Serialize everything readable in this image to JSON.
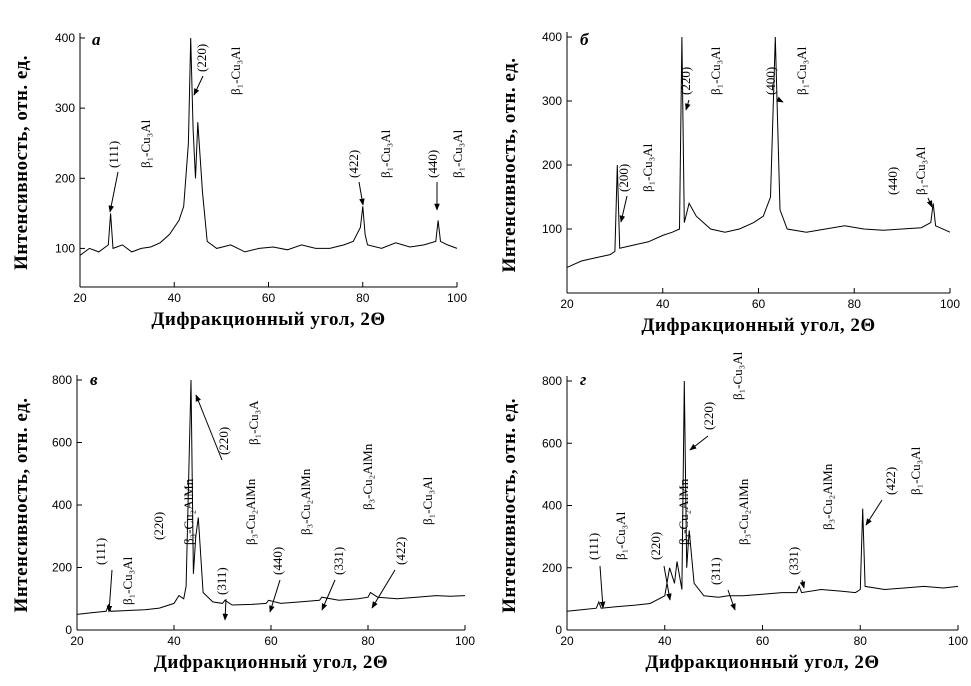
{
  "chart_data": [
    {
      "type": "line",
      "panel_label": "а",
      "xlabel": "Дифракционный угол, 2Θ",
      "ylabel": "Интенсивность, отн. ед.",
      "color": "#000000",
      "xlim": [
        20,
        100
      ],
      "ylim": [
        45,
        400
      ],
      "xticks": [
        20,
        40,
        60,
        80,
        100
      ],
      "yticks": [
        100,
        200,
        300,
        400
      ],
      "x": [
        20,
        22,
        24,
        26,
        26.5,
        27,
        29,
        31,
        33,
        35,
        37,
        39,
        41,
        42,
        43,
        43.5,
        44,
        44.5,
        45,
        46,
        47,
        49,
        52,
        55,
        58,
        61,
        64,
        67,
        70,
        73,
        76,
        78,
        79.5,
        80,
        80.5,
        81,
        84,
        87,
        90,
        93,
        95.5,
        96,
        96.5,
        98,
        100
      ],
      "values": [
        90,
        100,
        95,
        105,
        150,
        100,
        105,
        95,
        100,
        102,
        108,
        120,
        140,
        160,
        250,
        400,
        270,
        200,
        280,
        180,
        110,
        100,
        105,
        95,
        100,
        102,
        98,
        105,
        100,
        100,
        105,
        110,
        130,
        160,
        120,
        105,
        100,
        108,
        102,
        105,
        110,
        140,
        110,
        105,
        100
      ],
      "annotations": [
        {
          "hkl": "(111)",
          "phase": "β₁-Cu₃Al"
        },
        {
          "hkl": "(220)",
          "phase": "β₁-Cu₃Al"
        },
        {
          "hkl": "(422)",
          "phase": "β₁-Cu₃Al"
        },
        {
          "hkl": "(440)",
          "phase": "β₁-Cu₃Al"
        }
      ]
    },
    {
      "type": "line",
      "panel_label": "б",
      "xlabel": "Дифракционный угол, 2Θ",
      "ylabel": "Интенсивность, отн. ед.",
      "color": "#000000",
      "xlim": [
        20,
        100
      ],
      "ylim": [
        0,
        400
      ],
      "xticks": [
        20,
        40,
        60,
        80,
        100
      ],
      "yticks": [
        100,
        200,
        300,
        400
      ],
      "x": [
        20,
        23,
        26,
        29,
        30,
        30.5,
        31,
        34,
        37,
        40,
        42,
        43.5,
        44,
        44.5,
        45.5,
        47,
        50,
        53,
        56,
        59,
        61,
        62.5,
        63.5,
        64.5,
        66,
        70,
        74,
        78,
        82,
        86,
        90,
        94,
        96,
        96.5,
        97,
        100
      ],
      "values": [
        40,
        50,
        55,
        60,
        65,
        200,
        70,
        75,
        80,
        90,
        95,
        100,
        400,
        110,
        140,
        120,
        100,
        95,
        100,
        110,
        120,
        150,
        400,
        130,
        100,
        95,
        100,
        105,
        100,
        98,
        100,
        102,
        110,
        140,
        105,
        95
      ],
      "annotations": [
        {
          "hkl": "(200)",
          "phase": "β₁-Cu₃Al"
        },
        {
          "hkl": "(220)",
          "phase": "β₁-Cu₃Al"
        },
        {
          "hkl": "(400)",
          "phase": "β₁-Cu₃Al"
        },
        {
          "hkl": "(440)",
          "phase": "β₁-Cu₃Al"
        }
      ]
    },
    {
      "type": "line",
      "panel_label": "в",
      "xlabel": "Дифракционный угол, 2Θ",
      "ylabel": "Интенсивность, отн. ед.",
      "color": "#000000",
      "xlim": [
        20,
        100
      ],
      "ylim": [
        0,
        800
      ],
      "xticks": [
        20,
        40,
        60,
        80,
        100
      ],
      "yticks": [
        0,
        200,
        400,
        600,
        800
      ],
      "x": [
        20,
        23,
        26,
        26.5,
        27,
        30,
        34,
        37,
        40,
        41,
        42,
        42.5,
        43.5,
        44,
        44.5,
        45,
        46,
        48,
        50,
        50.5,
        52,
        56,
        59,
        59.5,
        62,
        66,
        70,
        70.5,
        74,
        78,
        80,
        80.5,
        82,
        86,
        90,
        94,
        97,
        100
      ],
      "values": [
        50,
        55,
        60,
        80,
        60,
        62,
        65,
        70,
        85,
        110,
        100,
        140,
        800,
        180,
        300,
        360,
        120,
        90,
        85,
        95,
        80,
        82,
        85,
        95,
        85,
        90,
        95,
        105,
        95,
        100,
        105,
        120,
        105,
        100,
        105,
        110,
        108,
        110
      ],
      "annotations": [
        {
          "hkl": "(111)",
          "phase": "β₁-Cu₃Al"
        },
        {
          "hkl": "(220)",
          "phase": "β₃-Cu₂AlMn"
        },
        {
          "hkl": "(220)",
          "phase": "β₁-Cu₃A"
        },
        {
          "hkl": "(311)",
          "phase": "β₃-Cu₂AlMn"
        },
        {
          "hkl": "(440)",
          "phase": "β₃-Cu₂AlMn"
        },
        {
          "hkl": "(331)",
          "phase": "β₃-Cu₂AlMn"
        },
        {
          "hkl": "(422)",
          "phase": "β₁-Cu₃Al"
        }
      ]
    },
    {
      "type": "line",
      "panel_label": "г",
      "xlabel": "Дифракционный угол, 2Θ",
      "ylabel": "Интенсивность, отн. ед.",
      "color": "#000000",
      "xlim": [
        20,
        100
      ],
      "ylim": [
        0,
        800
      ],
      "xticks": [
        20,
        40,
        60,
        80,
        100
      ],
      "yticks": [
        0,
        200,
        400,
        600,
        800
      ],
      "x": [
        20,
        23,
        26,
        26.5,
        27,
        30,
        34,
        37,
        40,
        41,
        42,
        42.5,
        43.5,
        44,
        44.5,
        45,
        46,
        48,
        51,
        53,
        56,
        60,
        64,
        67,
        67.5,
        68,
        72,
        76,
        79,
        80,
        80.5,
        81,
        85,
        89,
        93,
        97,
        100
      ],
      "values": [
        60,
        65,
        70,
        90,
        70,
        75,
        80,
        85,
        110,
        200,
        150,
        220,
        130,
        800,
        200,
        320,
        150,
        110,
        105,
        110,
        110,
        115,
        120,
        120,
        140,
        120,
        130,
        125,
        120,
        130,
        390,
        140,
        130,
        135,
        140,
        135,
        140
      ],
      "annotations": [
        {
          "hkl": "(111)",
          "phase": "β₁-Cu₃Al"
        },
        {
          "hkl": "(220)",
          "phase": "β₃-Cu₂AlMn"
        },
        {
          "hkl": "(220)",
          "phase": "β₁-Cu₃Al"
        },
        {
          "hkl": "(311)",
          "phase": "β₃-Cu₂AlMn"
        },
        {
          "hkl": "(331)",
          "phase": "β₃-Cu₂AlMn"
        },
        {
          "hkl": "(422)",
          "phase": "β₁-Cu₃Al"
        }
      ]
    }
  ]
}
